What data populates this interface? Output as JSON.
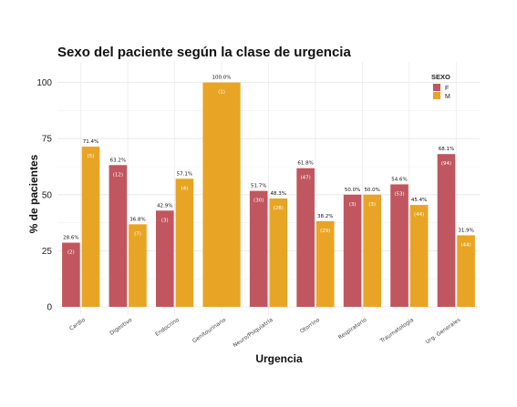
{
  "chart_data": {
    "type": "bar",
    "title": "Sexo del paciente según la clase de urgencia",
    "xlabel": "Urgencia",
    "ylabel": "% de pacientes",
    "ylim": [
      0,
      108
    ],
    "yticks": [
      0,
      25,
      50,
      75,
      100
    ],
    "grid": true,
    "legend": {
      "title": "SEXO",
      "position": "top-right"
    },
    "categories": [
      "Cardio",
      "Digestivo",
      "Endocrino",
      "Genitourinario",
      "Neuro/Psiquiatría",
      "Otorrino",
      "Respiratorio",
      "Traumatología",
      "Urg. Generales"
    ],
    "series": [
      {
        "name": "F",
        "color": "#c0565f",
        "values": [
          28.6,
          63.2,
          42.9,
          null,
          51.7,
          61.8,
          50.0,
          54.6,
          68.1
        ],
        "pct_labels": [
          "28.6%",
          "63.2%",
          "42.9%",
          null,
          "51.7%",
          "61.8%",
          "50.0%",
          "54.6%",
          "68.1%"
        ],
        "count_labels": [
          "(2)",
          "(12)",
          "(3)",
          null,
          "(30)",
          "(47)",
          "(3)",
          "(53)",
          "(94)"
        ]
      },
      {
        "name": "M",
        "color": "#e8a424",
        "values": [
          71.4,
          36.8,
          57.1,
          100.0,
          48.3,
          38.2,
          50.0,
          45.4,
          31.9
        ],
        "pct_labels": [
          "71.4%",
          "36.8%",
          "57.1%",
          "100.0%",
          "48.3%",
          "38.2%",
          "50.0%",
          "45.4%",
          "31.9%"
        ],
        "count_labels": [
          "(5)",
          "(7)",
          "(4)",
          "(1)",
          "(28)",
          "(29)",
          "(3)",
          "(44)",
          "(44)"
        ]
      }
    ]
  }
}
